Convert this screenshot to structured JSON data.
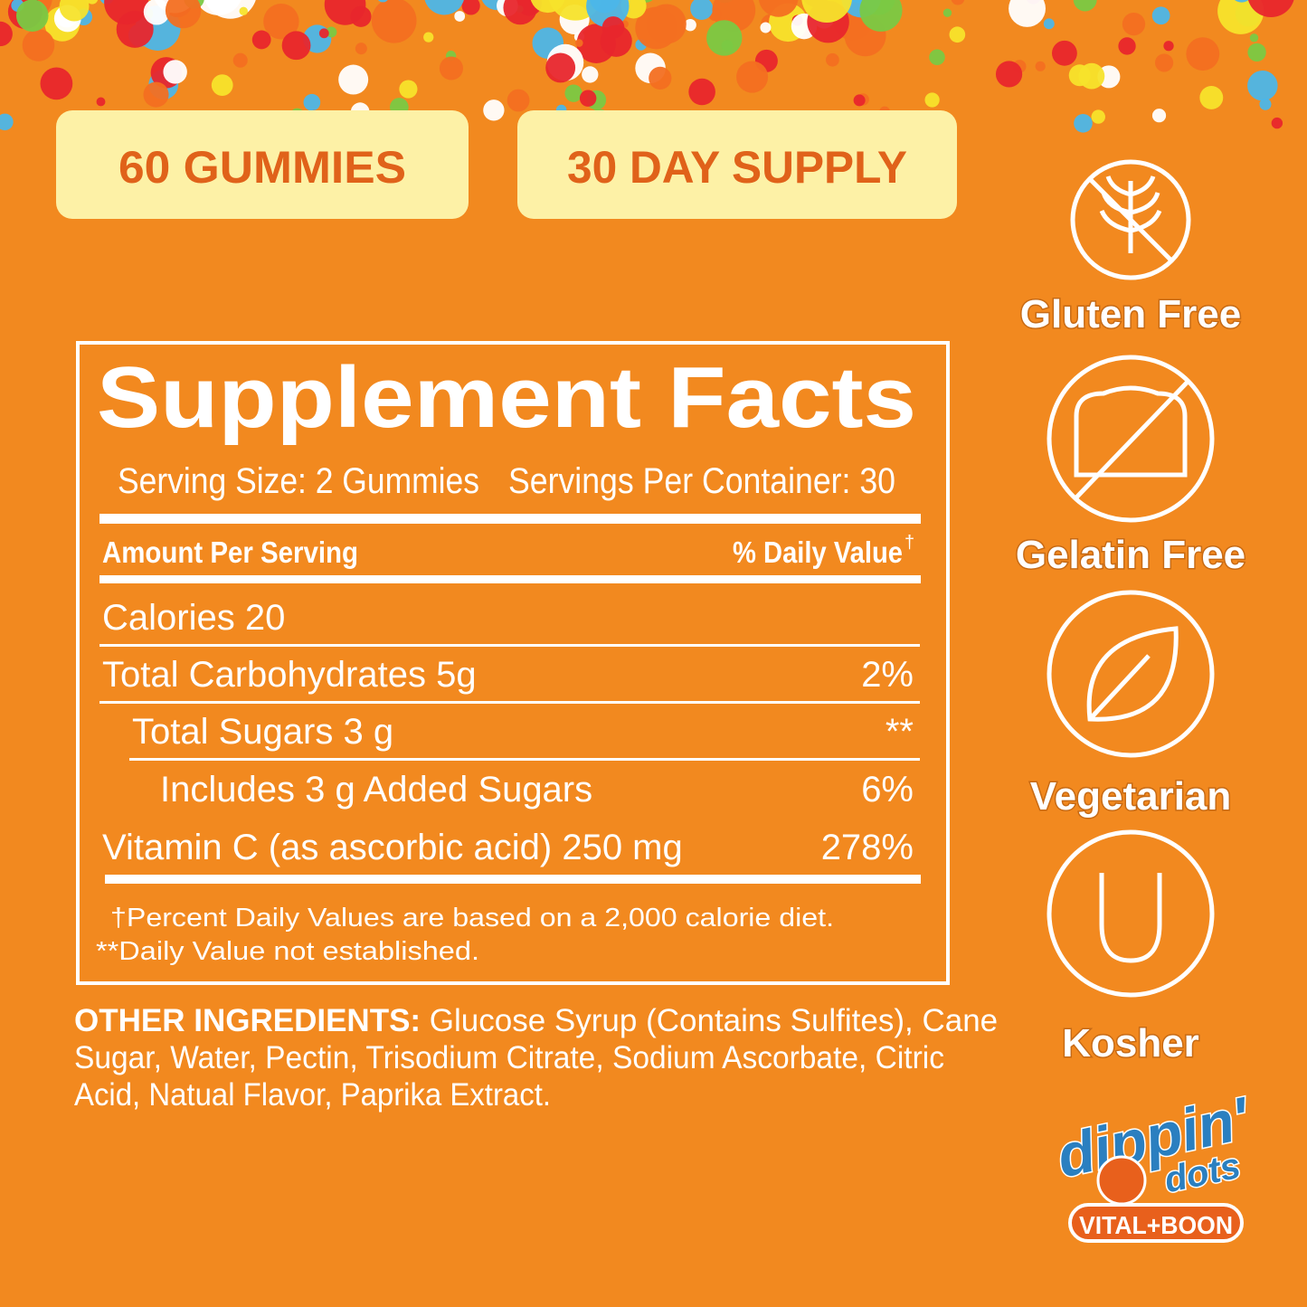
{
  "badges": [
    "60 GUMMIES",
    "30 DAY SUPPLY"
  ],
  "facts": {
    "title": "Supplement Facts",
    "serving_size": "Serving Size: 2 Gummies",
    "servings_per_container": "Servings Per Container: 30",
    "header": {
      "amount": "Amount Per Serving",
      "daily_value": "% Daily Value",
      "dagger": "†"
    },
    "rows": [
      {
        "name": "Calories 20"
      },
      {
        "name": "Total Carbohydrates 5g",
        "dv": "2%"
      },
      {
        "name": "Total Sugars 3 g",
        "dv": "**"
      },
      {
        "name": "Includes 3 g Added Sugars",
        "dv": "6%"
      },
      {
        "name": "Vitamin C (as ascorbic acid) 250 mg",
        "dv": "278%"
      }
    ],
    "footnotes": [
      "†Percent Daily Values are based on a 2,000 calorie diet.",
      "**Daily Value not established."
    ]
  },
  "ingredients": {
    "label": "OTHER INGREDIENTS:",
    "lines": [
      " Glucose Syrup (Contains Sulfites), Cane",
      "Sugar, Water, Pectin, Trisodium Citrate, Sodium Ascorbate, Citric",
      "Acid, Natual Flavor, Paprika Extract."
    ]
  },
  "claims": [
    "Gluten Free",
    "Gelatin Free",
    "Vegetarian",
    "Kosher"
  ],
  "logo": {
    "brand_top": "dippin'",
    "brand_bottom": "dots",
    "maker": "VITAL+BOON"
  }
}
